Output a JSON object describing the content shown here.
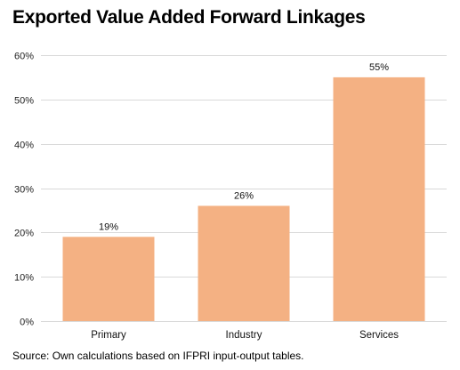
{
  "chart_data": {
    "type": "bar",
    "title": "Exported Value Added Forward Linkages",
    "categories": [
      "Primary",
      "Industry",
      "Services"
    ],
    "values": [
      19,
      26,
      55
    ],
    "data_labels": [
      "19%",
      "26%",
      "55%"
    ],
    "xlabel": "",
    "ylabel": "",
    "ylim": [
      0,
      60
    ],
    "yticks": [
      0,
      10,
      20,
      30,
      40,
      50,
      60
    ],
    "ytick_labels": [
      "0%",
      "10%",
      "20%",
      "30%",
      "40%",
      "50%",
      "60%"
    ],
    "grid": true,
    "legend": "none",
    "bar_color": "#F4B183",
    "grid_color": "#D9D9D9"
  },
  "source": "Source: Own calculations based on IFPRI input-output tables."
}
